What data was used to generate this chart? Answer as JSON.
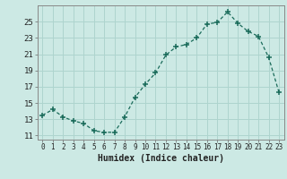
{
  "x": [
    0,
    1,
    2,
    3,
    4,
    5,
    6,
    7,
    8,
    9,
    10,
    11,
    12,
    13,
    14,
    15,
    16,
    17,
    18,
    19,
    20,
    21,
    22,
    23
  ],
  "y": [
    13.5,
    14.2,
    13.3,
    12.8,
    12.5,
    11.6,
    11.4,
    11.4,
    13.3,
    15.7,
    17.3,
    18.7,
    20.9,
    21.9,
    22.2,
    23.0,
    24.7,
    24.9,
    26.2,
    24.8,
    23.8,
    23.2,
    20.6,
    16.3
  ],
  "xlabel": "Humidex (Indice chaleur)",
  "ylabel": "",
  "bg_color": "#cce9e4",
  "grid_color": "#aed4ce",
  "line_color": "#1a6b5a",
  "marker_color": "#1a6b5a",
  "ylim": [
    10.5,
    27.0
  ],
  "xlim": [
    -0.5,
    23.5
  ],
  "yticks": [
    11,
    13,
    15,
    17,
    19,
    21,
    23,
    25
  ],
  "xtick_labels": [
    "0",
    "1",
    "2",
    "3",
    "4",
    "5",
    "6",
    "7",
    "8",
    "9",
    "10",
    "11",
    "12",
    "13",
    "14",
    "15",
    "16",
    "17",
    "18",
    "19",
    "20",
    "21",
    "22",
    "23"
  ]
}
